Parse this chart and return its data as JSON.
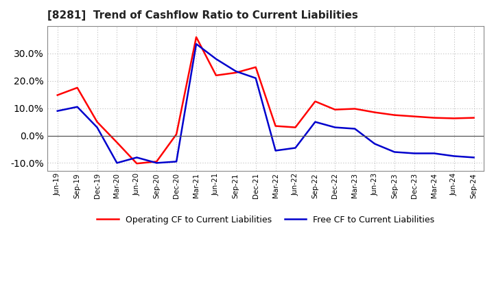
{
  "title": "[8281]  Trend of Cashflow Ratio to Current Liabilities",
  "x_labels": [
    "Jun-19",
    "Sep-19",
    "Dec-19",
    "Mar-20",
    "Jun-20",
    "Sep-20",
    "Dec-20",
    "Mar-21",
    "Jun-21",
    "Sep-21",
    "Dec-21",
    "Mar-22",
    "Jun-22",
    "Sep-22",
    "Dec-22",
    "Mar-23",
    "Jun-23",
    "Sep-23",
    "Dec-23",
    "Mar-24",
    "Jun-24",
    "Sep-24"
  ],
  "operating_cf": [
    14.8,
    17.5,
    5.0,
    -2.5,
    -10.2,
    -9.5,
    0.5,
    36.0,
    22.0,
    23.0,
    25.0,
    3.5,
    3.0,
    12.5,
    9.5,
    9.8,
    8.5,
    7.5,
    7.0,
    6.5,
    6.3,
    6.5
  ],
  "free_cf": [
    9.0,
    10.5,
    3.0,
    -10.0,
    -8.0,
    -10.0,
    -9.5,
    33.5,
    28.0,
    23.5,
    21.0,
    -5.5,
    -4.5,
    5.0,
    3.0,
    2.5,
    -3.0,
    -6.0,
    -6.5,
    -6.5,
    -7.5,
    -8.0
  ],
  "operating_color": "#ff0000",
  "free_color": "#0000cd",
  "bg_color": "#ffffff",
  "plot_bg_color": "#ffffff",
  "ylim": [
    -13,
    40
  ],
  "yticks": [
    -10.0,
    0.0,
    10.0,
    20.0,
    30.0
  ],
  "legend_operating": "Operating CF to Current Liabilities",
  "legend_free": "Free CF to Current Liabilities"
}
